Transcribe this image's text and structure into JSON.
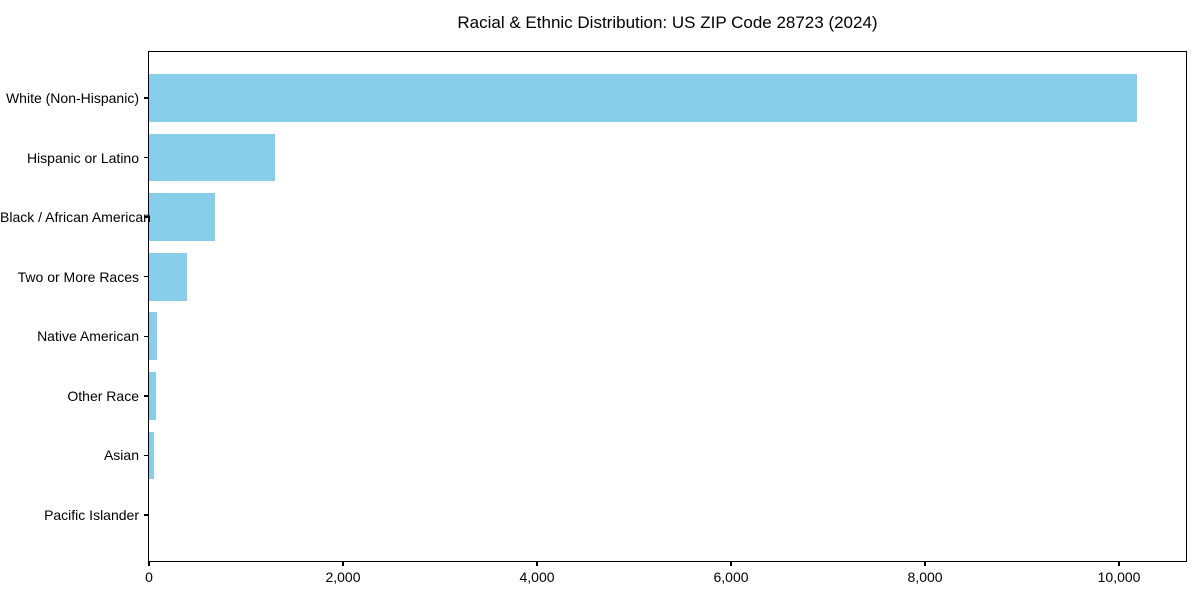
{
  "page": {
    "background_color": "#ffffff"
  },
  "chart_data": {
    "type": "bar",
    "orientation": "horizontal",
    "title": "Racial & Ethnic Distribution: US ZIP Code 28723 (2024)",
    "categories": [
      "White (Non-Hispanic)",
      "Hispanic or Latino",
      "Black / African American",
      "Two or More Races",
      "Native American",
      "Other Race",
      "Asian",
      "Pacific Islander"
    ],
    "values": [
      10180,
      1300,
      680,
      390,
      85,
      70,
      55,
      0
    ],
    "xlabel": "",
    "ylabel": "",
    "xlim": [
      0,
      10690
    ],
    "x_ticks": [
      0,
      2000,
      4000,
      6000,
      8000,
      10000
    ],
    "x_tick_labels": [
      "0",
      "2,000",
      "4,000",
      "6,000",
      "8,000",
      "10,000"
    ],
    "bar_color": "#87CEEB",
    "spine_color": "#000000",
    "text_color": "#000000",
    "grid": false,
    "legend": "none",
    "value_axis": "x",
    "bars_sorted_descending_top_to_bottom": true
  }
}
